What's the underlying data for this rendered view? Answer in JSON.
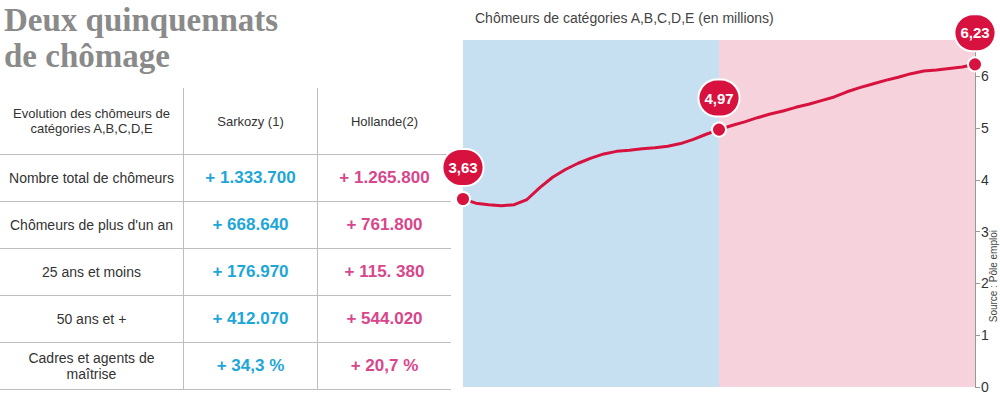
{
  "header": {
    "title": "Deux quinquennats de chômage"
  },
  "table": {
    "header": [
      "Evolution des chômeurs de catégories A,B,C,D,E",
      "Sarkozy (1)",
      "Hollande(2)"
    ],
    "rows": [
      [
        "Nombre total de chômeurs",
        "+ 1.333.700",
        "+ 1.265.800"
      ],
      [
        "Chômeurs de plus d'un an",
        "+ 668.640",
        "+ 761.800"
      ],
      [
        "25 ans et moins",
        "+ 176.970",
        "+ 115. 380"
      ],
      [
        "50 ans et +",
        "+ 412.070",
        "+ 544.020"
      ],
      [
        "Cadres et agents de maîtrise",
        "+ 34,3 %",
        "+ 20,7 %"
      ]
    ]
  },
  "source": "Source : Pôle emploi",
  "chart_data": {
    "type": "line",
    "title": "Chômeurs de catégories A,B,C,D,E (en millions)",
    "categories": [
      null,
      null,
      null,
      null,
      null,
      null,
      null,
      null,
      null,
      null,
      null,
      null,
      null,
      null,
      null,
      null,
      null,
      null,
      null,
      null,
      null,
      null,
      null,
      null,
      null,
      null,
      null,
      null,
      null,
      null,
      null,
      null,
      null,
      null,
      null,
      null,
      null,
      null,
      null,
      null,
      null
    ],
    "values": [
      3.63,
      3.55,
      3.52,
      3.5,
      3.52,
      3.62,
      3.85,
      4.05,
      4.2,
      4.32,
      4.42,
      4.5,
      4.55,
      4.57,
      4.6,
      4.62,
      4.65,
      4.7,
      4.78,
      4.88,
      4.97,
      5.05,
      5.12,
      5.2,
      5.27,
      5.33,
      5.4,
      5.46,
      5.53,
      5.6,
      5.7,
      5.78,
      5.85,
      5.92,
      5.98,
      6.05,
      6.1,
      6.12,
      6.15,
      6.18,
      6.23
    ],
    "value_labels": [
      "3,63",
      null,
      null,
      null,
      null,
      null,
      null,
      null,
      null,
      null,
      null,
      null,
      null,
      null,
      null,
      null,
      null,
      null,
      null,
      null,
      "4,97",
      null,
      null,
      null,
      null,
      null,
      null,
      null,
      null,
      null,
      null,
      null,
      null,
      null,
      null,
      null,
      null,
      null,
      null,
      null,
      "6,23"
    ],
    "data_labels": true,
    "color": "#d7123f",
    "marker": "circle",
    "ylim": [
      0,
      6.7
    ],
    "yticks": [
      0,
      1,
      2,
      3,
      4,
      5,
      6
    ],
    "grid": false,
    "tick_labels": "y"
  }
}
